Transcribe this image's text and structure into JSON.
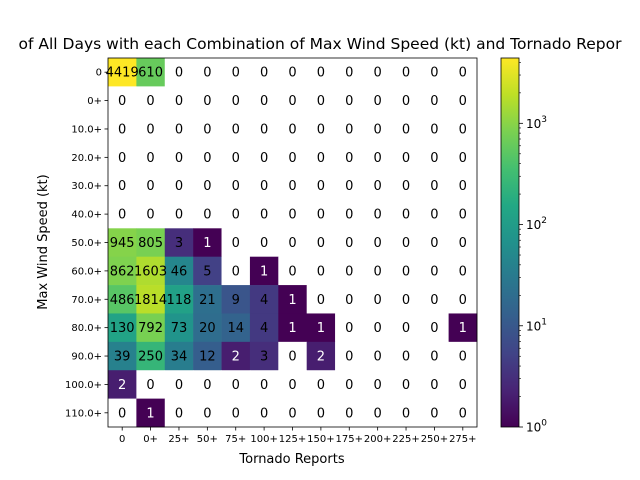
{
  "chart_data": {
    "type": "heatmap",
    "title": "of All Days with each Combination of Max Wind Speed (kt) and Tornado Repor",
    "xlabel": "Tornado Reports",
    "ylabel": "Max Wind Speed (kt)",
    "x_categories": [
      "0",
      "0+",
      "25+",
      "50+",
      "75+",
      "100+",
      "125+",
      "150+",
      "175+",
      "200+",
      "225+",
      "250+",
      "275+"
    ],
    "y_categories": [
      "0",
      "0+",
      "10.0+",
      "20.0+",
      "30.0+",
      "40.0+",
      "50.0+",
      "60.0+",
      "70.0+",
      "80.0+",
      "90.0+",
      "100.0+",
      "110.0+"
    ],
    "values": [
      [
        4419,
        610,
        0,
        0,
        0,
        0,
        0,
        0,
        0,
        0,
        0,
        0,
        0
      ],
      [
        0,
        0,
        0,
        0,
        0,
        0,
        0,
        0,
        0,
        0,
        0,
        0,
        0
      ],
      [
        0,
        0,
        0,
        0,
        0,
        0,
        0,
        0,
        0,
        0,
        0,
        0,
        0
      ],
      [
        0,
        0,
        0,
        0,
        0,
        0,
        0,
        0,
        0,
        0,
        0,
        0,
        0
      ],
      [
        0,
        0,
        0,
        0,
        0,
        0,
        0,
        0,
        0,
        0,
        0,
        0,
        0
      ],
      [
        0,
        0,
        0,
        0,
        0,
        0,
        0,
        0,
        0,
        0,
        0,
        0,
        0
      ],
      [
        945,
        805,
        3,
        1,
        0,
        0,
        0,
        0,
        0,
        0,
        0,
        0,
        0
      ],
      [
        862,
        1603,
        46,
        5,
        0,
        1,
        0,
        0,
        0,
        0,
        0,
        0,
        0
      ],
      [
        486,
        1814,
        118,
        21,
        9,
        4,
        1,
        0,
        0,
        0,
        0,
        0,
        0
      ],
      [
        130,
        792,
        73,
        20,
        14,
        4,
        1,
        1,
        0,
        0,
        0,
        0,
        1
      ],
      [
        39,
        250,
        34,
        12,
        2,
        3,
        0,
        2,
        0,
        0,
        0,
        0,
        0
      ],
      [
        2,
        0,
        0,
        0,
        0,
        0,
        0,
        0,
        0,
        0,
        0,
        0,
        0
      ],
      [
        0,
        1,
        0,
        0,
        0,
        0,
        0,
        0,
        0,
        0,
        0,
        0,
        0
      ]
    ],
    "colorscale": "viridis",
    "color_scale_type": "log",
    "colorbar_range": [
      1,
      4419
    ],
    "colorbar_ticks": [
      1,
      10,
      100,
      1000
    ],
    "colorbar_tick_labels": [
      "10^0",
      "10^1",
      "10^2",
      "10^3"
    ],
    "zero_cells_color": "#ffffff"
  }
}
